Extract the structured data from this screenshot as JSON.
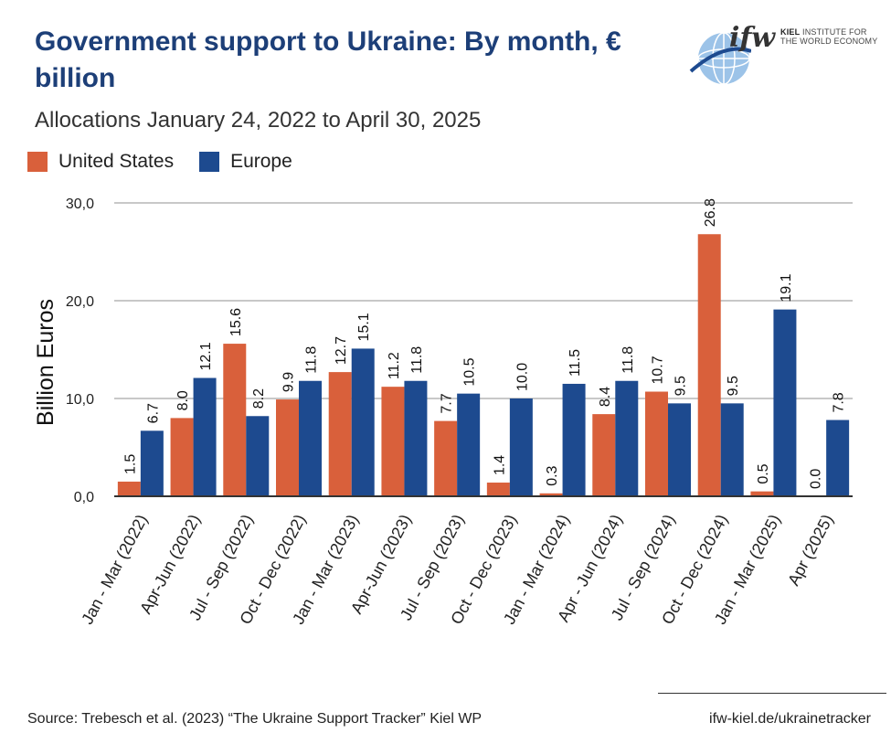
{
  "header": {
    "title": "Government support to Ukraine: By month, € billion",
    "subtitle": "Allocations January 24, 2022 to April 30, 2025"
  },
  "logo": {
    "mark": "ifw",
    "line1": "KIEL",
    "line1_rest": "INSTITUTE FOR",
    "line2": "THE WORLD ECONOMY"
  },
  "footer": {
    "source": "Source: Trebesch et al. (2023) “The Ukraine Support Tracker” Kiel WP",
    "site": "ifw-kiel.de/ukrainetracker"
  },
  "chart_data": {
    "type": "bar",
    "title": "Government support to Ukraine: By month, € billion",
    "subtitle": "Allocations January 24, 2022 to April 30, 2025",
    "xlabel": "",
    "ylabel": "Billion Euros",
    "ylim": [
      0,
      30
    ],
    "yticks": [
      0,
      10,
      20,
      30
    ],
    "ytick_labels": [
      "0,0",
      "10,0",
      "20,0",
      "30,0"
    ],
    "grid": true,
    "legend_position": "top-left",
    "categories": [
      "Jan - Mar (2022)",
      "Apr-Jun (2022)",
      "Jul - Sep (2022)",
      "Oct - Dec (2022)",
      "Jan - Mar (2023)",
      "Apr-Jun (2023)",
      "Jul - Sep (2023)",
      "Oct - Dec (2023)",
      "Jan - Mar (2024)",
      "Apr - Jun (2024)",
      "Jul - Sep (2024)",
      "Oct - Dec (2024)",
      "Jan - Mar (2025)",
      "Apr (2025)"
    ],
    "series": [
      {
        "name": "United States",
        "color": "#d9603b",
        "values": [
          1.5,
          8.0,
          15.6,
          9.9,
          12.7,
          11.2,
          7.7,
          1.4,
          0.3,
          8.4,
          10.7,
          26.8,
          0.5,
          0.0
        ],
        "labels": [
          "1.5",
          "8.0",
          "15.6",
          "9.9",
          "12.7",
          "11.2",
          "7.7",
          "1.4",
          "0.3",
          "8.4",
          "10.7",
          "26.8",
          "0.5",
          "0.0"
        ]
      },
      {
        "name": "Europe",
        "color": "#1d4a8f",
        "values": [
          6.7,
          12.1,
          8.2,
          11.8,
          15.1,
          11.8,
          10.5,
          10.0,
          11.5,
          11.8,
          9.5,
          9.5,
          19.1,
          7.8
        ],
        "labels": [
          "6.7",
          "12.1",
          "8.2",
          "11.8",
          "15.1",
          "11.8",
          "10.5",
          "10.0",
          "11.5",
          "11.8",
          "9.5",
          "9.5",
          "19.1",
          "7.8"
        ]
      }
    ]
  }
}
